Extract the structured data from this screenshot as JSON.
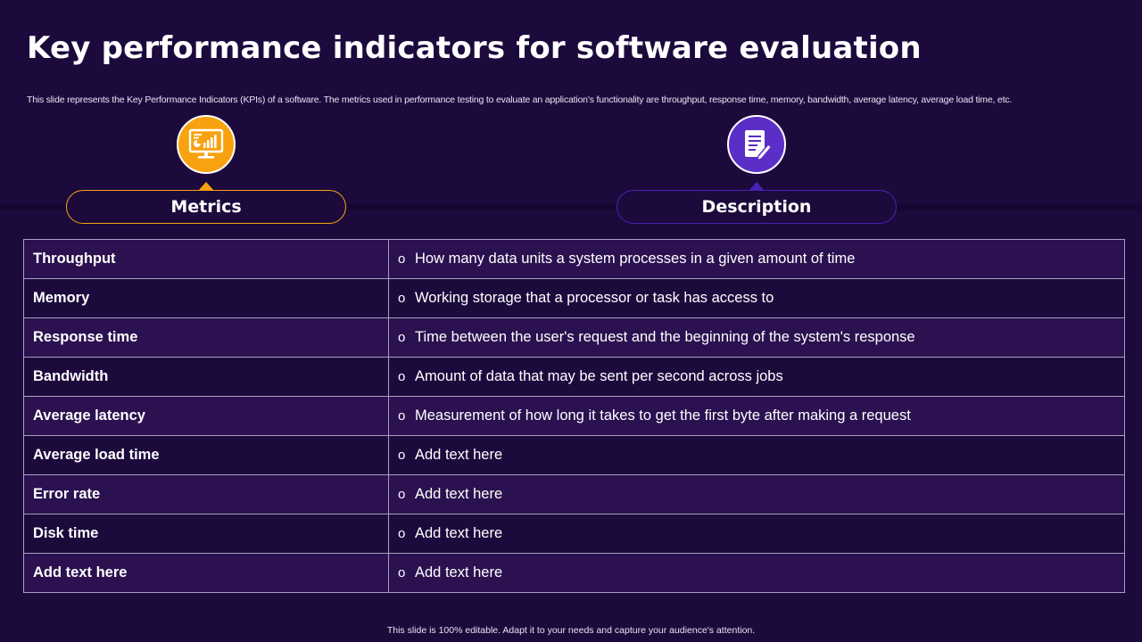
{
  "title": "Key performance indicators for software evaluation",
  "subtitle": "This slide represents the Key Performance Indicators (KPIs) of a software. The metrics used in performance testing to evaluate an application’s functionality are throughput, response time, memory, bandwidth, average latency, average load time, etc.",
  "headers": {
    "metrics": "Metrics",
    "description": "Description"
  },
  "bullet_glyph": "o",
  "rows": [
    {
      "metric": "Throughput",
      "description": "How many data units a system processes in a given amount of time"
    },
    {
      "metric": "Memory",
      "description": "Working storage that a processor or task has access to"
    },
    {
      "metric": "Response time",
      "description": "Time between the user's request and the beginning of the system's response"
    },
    {
      "metric": "Bandwidth",
      "description": "Amount of data that may be sent per second across jobs"
    },
    {
      "metric": "Average latency",
      "description": "Measurement of how long it takes to get the first byte after making a request"
    },
    {
      "metric": "Average load time",
      "description": "Add text here"
    },
    {
      "metric": "Error rate",
      "description": "Add text here"
    },
    {
      "metric": "Disk time",
      "description": "Add text here"
    },
    {
      "metric": "Add text here",
      "description": "Add text here"
    }
  ],
  "footer": "This slide is 100% editable. Adapt it to your needs and capture your audience's attention.",
  "colors": {
    "background": "#1c0a3d",
    "accent_orange": "#f7a20e",
    "accent_purple": "#5b2ec8",
    "row_alt": "#2b1150"
  },
  "icons": {
    "metrics": "analytics-monitor-icon",
    "description": "document-edit-icon"
  }
}
